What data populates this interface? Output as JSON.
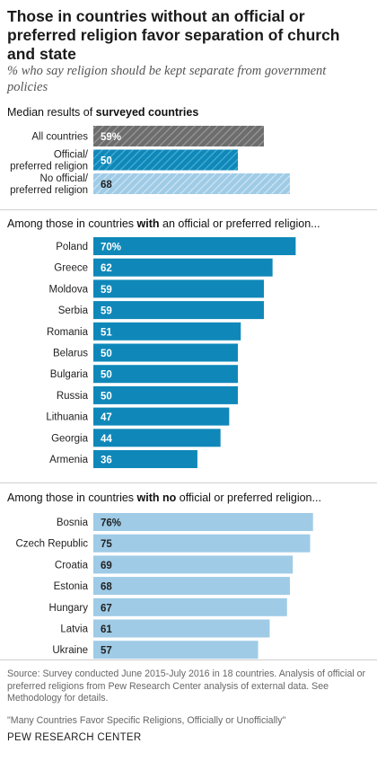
{
  "title": "Those in countries without an official or preferred religion favor separation of church and state",
  "subtitle": "% who say religion should be kept separate from government policies",
  "median_heading_prefix": "Median results of ",
  "median_heading_bold": "surveyed countries",
  "section1_heading_prefix": "Among those in countries ",
  "section1_heading_bold": "with",
  "section1_heading_suffix": " an official or preferred religion...",
  "section2_heading_prefix": "Among those in countries ",
  "section2_heading_bold": "with no",
  "section2_heading_suffix": " official or preferred religion...",
  "source": "Source: Survey conducted June 2015-July 2016 in 18 countries. Analysis of official or preferred religions from Pew Research Center analysis of external data. See Methodology for details.",
  "quote": "\"Many Countries Favor Specific Religions, Officially or Unofficially\"",
  "brand": "PEW RESEARCH CENTER",
  "colors": {
    "median_all": "#6d6d6d",
    "official": "#0f88b9",
    "no_official": "#9fcbe6"
  },
  "chart_data": [
    {
      "type": "bar",
      "orientation": "horizontal",
      "group": "median",
      "categories": [
        "All countries",
        "Official/\npreferred religion",
        "No official/\npreferred religion"
      ],
      "values": [
        59,
        50,
        68
      ],
      "labels": [
        "59%",
        "50",
        "68"
      ],
      "colors": [
        "#6d6d6d",
        "#0f88b9",
        "#9fcbe6"
      ],
      "hatched": true,
      "xlim": [
        0,
        100
      ]
    },
    {
      "type": "bar",
      "orientation": "horizontal",
      "group": "official",
      "categories": [
        "Poland",
        "Greece",
        "Moldova",
        "Serbia",
        "Romania",
        "Belarus",
        "Bulgaria",
        "Russia",
        "Lithuania",
        "Georgia",
        "Armenia"
      ],
      "values": [
        70,
        62,
        59,
        59,
        51,
        50,
        50,
        50,
        47,
        44,
        36
      ],
      "labels": [
        "70%",
        "62",
        "59",
        "59",
        "51",
        "50",
        "50",
        "50",
        "47",
        "44",
        "36"
      ],
      "color": "#0f88b9",
      "xlim": [
        0,
        100
      ]
    },
    {
      "type": "bar",
      "orientation": "horizontal",
      "group": "no_official",
      "categories": [
        "Bosnia",
        "Czech Republic",
        "Croatia",
        "Estonia",
        "Hungary",
        "Latvia",
        "Ukraine"
      ],
      "values": [
        76,
        75,
        69,
        68,
        67,
        61,
        57
      ],
      "labels": [
        "76%",
        "75",
        "69",
        "68",
        "67",
        "61",
        "57"
      ],
      "color": "#9fcbe6",
      "xlim": [
        0,
        100
      ]
    }
  ]
}
